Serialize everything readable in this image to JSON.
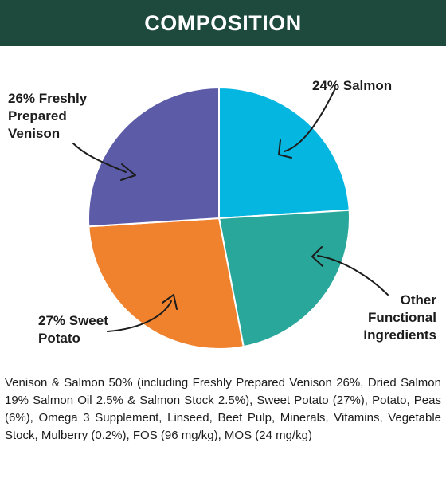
{
  "header": {
    "title": "COMPOSITION"
  },
  "chart_data": {
    "type": "pie",
    "title": "",
    "slices": [
      {
        "label_lines": [
          "24% Salmon"
        ],
        "value": 24,
        "color": "#05b6e0"
      },
      {
        "label_lines": [
          "Other",
          "Functional",
          "Ingredients"
        ],
        "value": 23,
        "color": "#2aa79b"
      },
      {
        "label_lines": [
          "27% Sweet",
          "Potato"
        ],
        "value": 27,
        "color": "#f0822e"
      },
      {
        "label_lines": [
          "26% Freshly",
          "Prepared",
          "Venison"
        ],
        "value": 26,
        "color": "#5b5ba8"
      }
    ]
  },
  "description": "Venison & Salmon 50% (including Freshly Prepared Venison 26%, Dried Salmon 19% Salmon Oil 2.5% & Salmon Stock 2.5%), Sweet Potato (27%), Potato, Peas (6%), Omega 3 Supplement, Linseed, Beet Pulp, Minerals, Vitamins, Vegetable Stock, Mulberry (0.2%), FOS (96 mg/kg), MOS (24 mg/kg)"
}
